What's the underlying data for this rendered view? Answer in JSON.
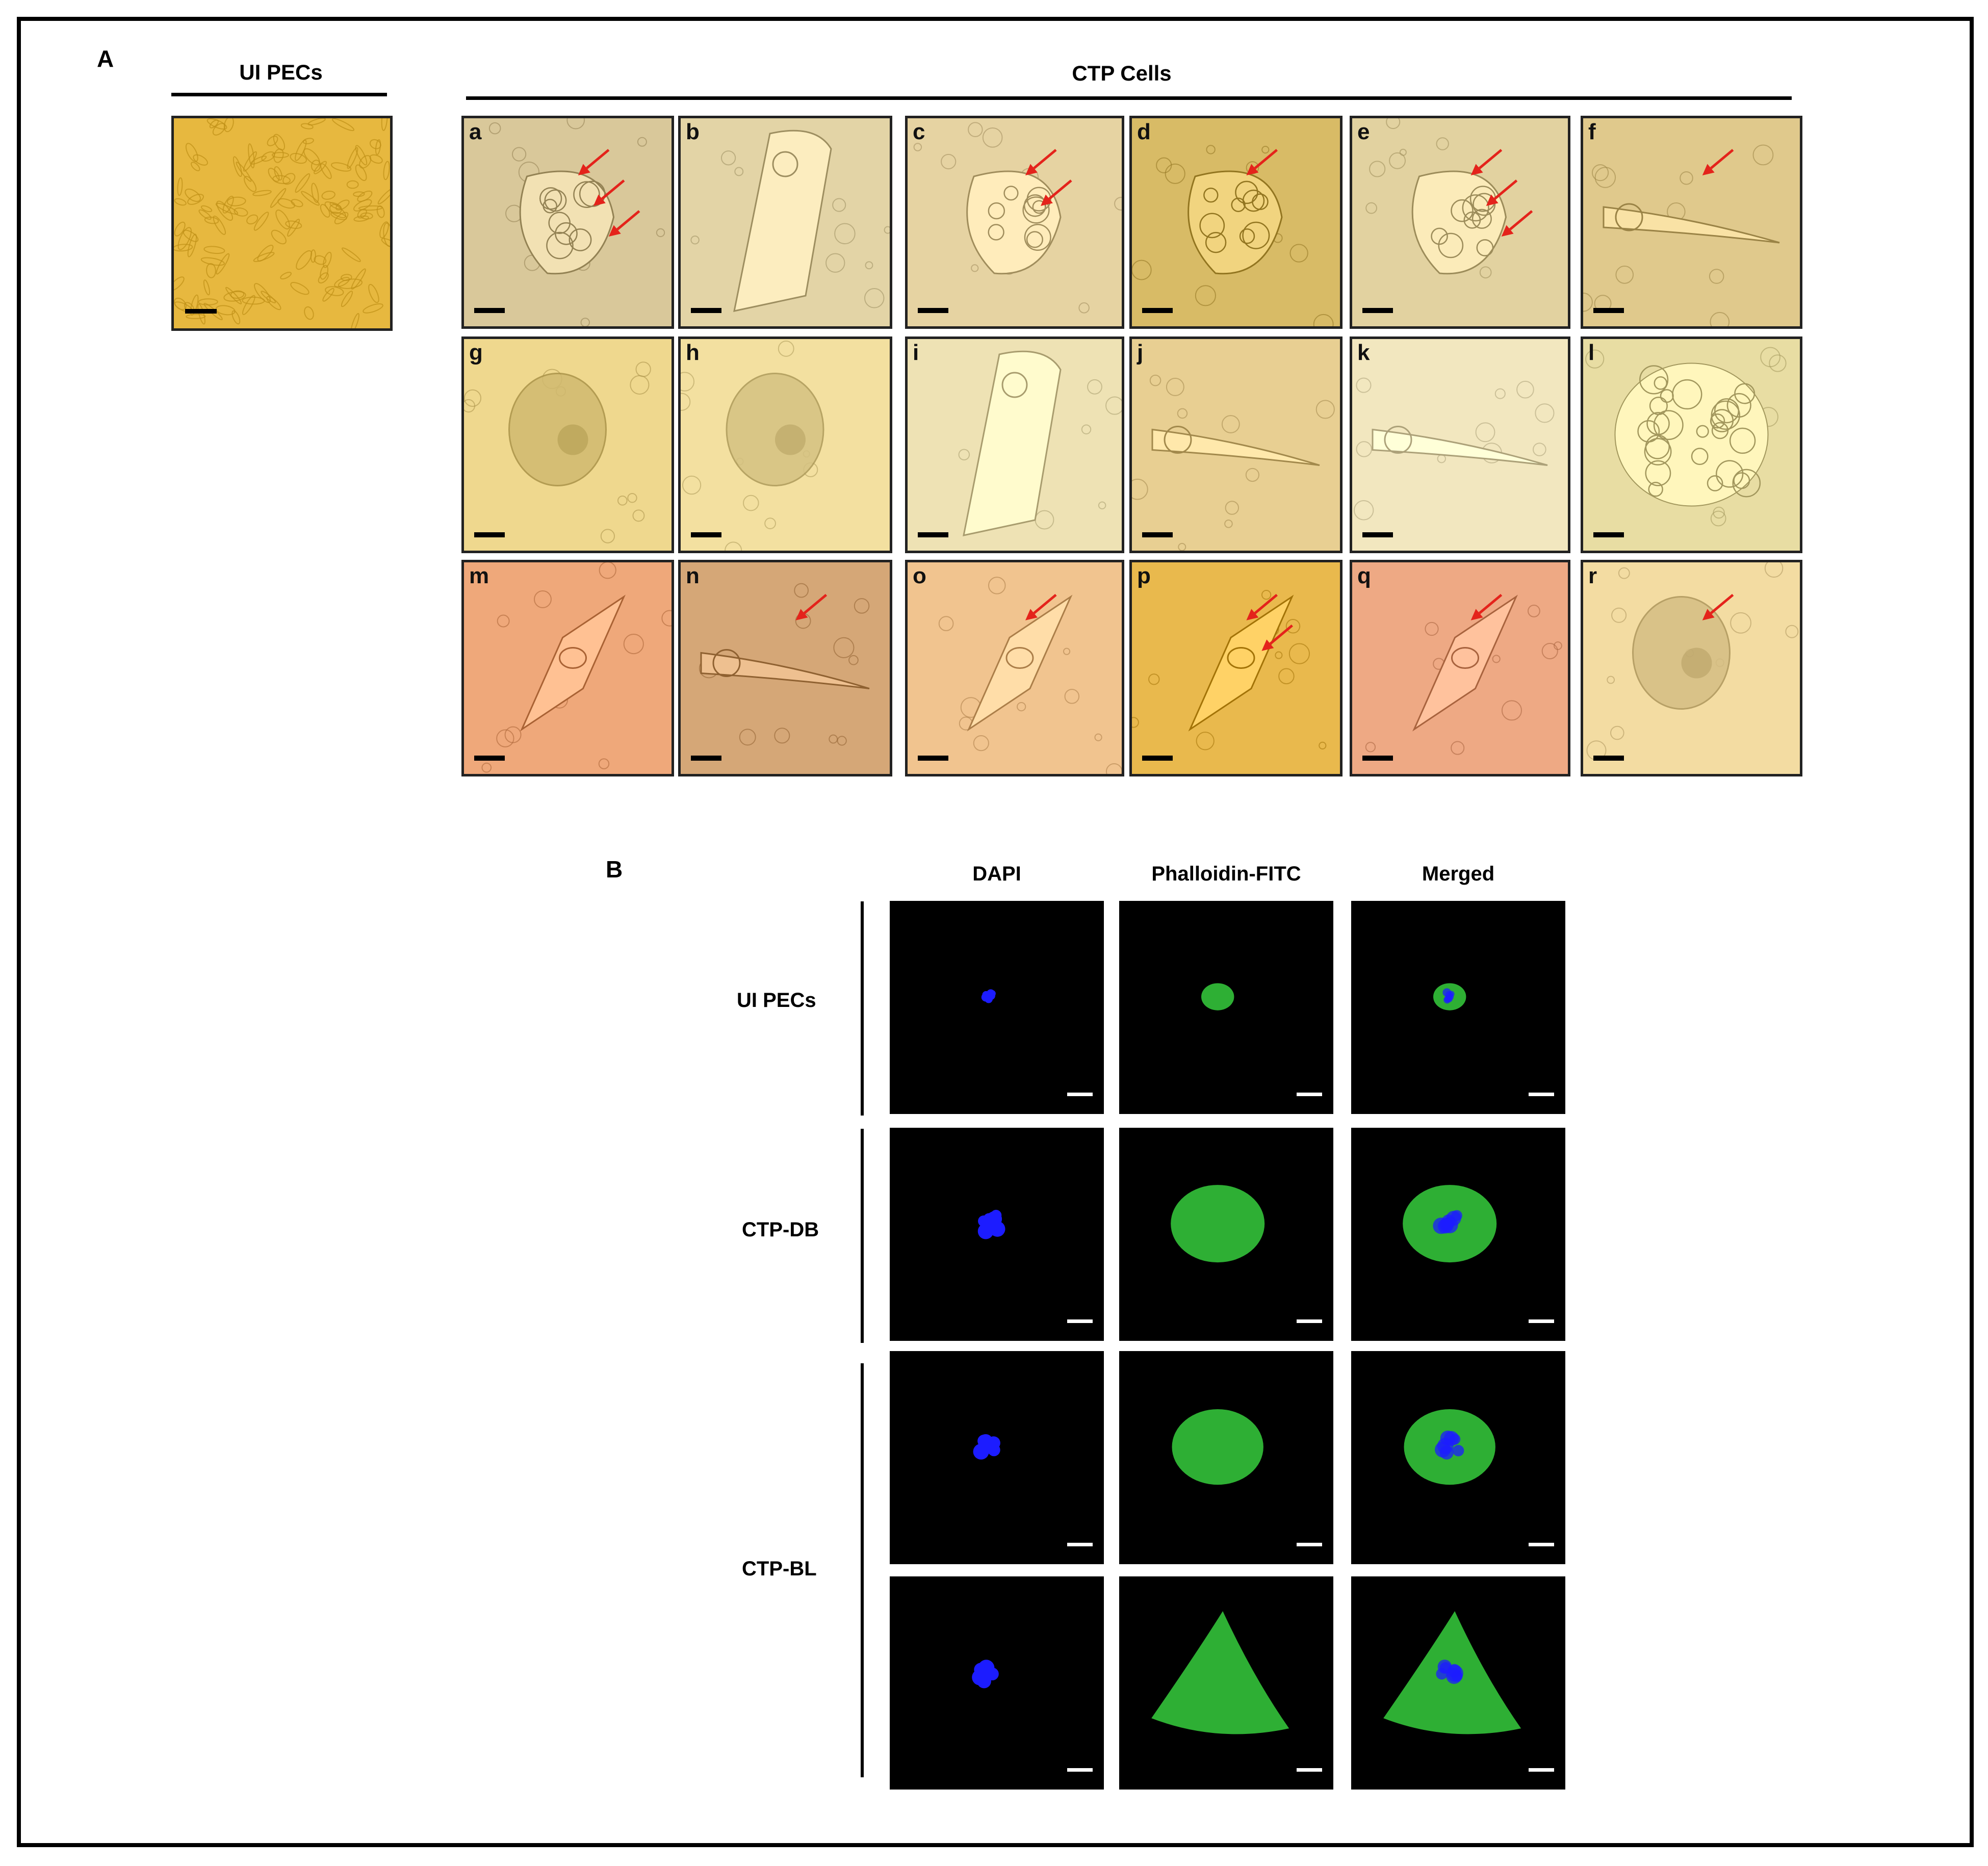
{
  "panel_a": {
    "label": "A",
    "control_title": "UI PECs",
    "group_title": "CTP Cells",
    "control_tile": {
      "letter": "",
      "bg": "#e7b83f",
      "stain": "dense-monolayer",
      "scale_bar_color": "#000000"
    },
    "tiles": [
      {
        "letter": "a",
        "bg": "#d9c89a",
        "shape": "cluster",
        "arrows": 3
      },
      {
        "letter": "b",
        "bg": "#e3d4a6",
        "shape": "giant",
        "arrows": 0
      },
      {
        "letter": "c",
        "bg": "#e6d3a2",
        "shape": "cluster",
        "arrows": 2
      },
      {
        "letter": "d",
        "bg": "#d8bb66",
        "shape": "cluster",
        "arrows": 1
      },
      {
        "letter": "e",
        "bg": "#e2d2a0",
        "shape": "cluster",
        "arrows": 3
      },
      {
        "letter": "f",
        "bg": "#e0c98c",
        "shape": "elongated",
        "arrows": 1
      },
      {
        "letter": "g",
        "bg": "#efd88e",
        "shape": "round",
        "arrows": 0
      },
      {
        "letter": "h",
        "bg": "#f3e0a0",
        "shape": "round",
        "arrows": 0
      },
      {
        "letter": "i",
        "bg": "#eee2b4",
        "shape": "giant",
        "arrows": 0
      },
      {
        "letter": "j",
        "bg": "#e8cf92",
        "shape": "elongated",
        "arrows": 0
      },
      {
        "letter": "k",
        "bg": "#f2e7bf",
        "shape": "elongated",
        "arrows": 0
      },
      {
        "letter": "l",
        "bg": "#e8dda3",
        "shape": "vacuolated",
        "arrows": 0
      },
      {
        "letter": "m",
        "bg": "#efa87a",
        "shape": "spindle",
        "arrows": 0
      },
      {
        "letter": "n",
        "bg": "#d5a777",
        "shape": "elongated",
        "arrows": 1
      },
      {
        "letter": "o",
        "bg": "#f1c48f",
        "shape": "spindle",
        "arrows": 1
      },
      {
        "letter": "p",
        "bg": "#e9b94d",
        "shape": "spindle",
        "arrows": 2
      },
      {
        "letter": "q",
        "bg": "#eea984",
        "shape": "spindle",
        "arrows": 1
      },
      {
        "letter": "r",
        "bg": "#f3dca2",
        "shape": "round",
        "arrows": 1
      }
    ],
    "arrow_color": "#e4231b"
  },
  "panel_b": {
    "label": "B",
    "columns": [
      "DAPI",
      "Phalloidin-FITC",
      "Merged"
    ],
    "row_labels": [
      "UI PECs",
      "CTP-DB",
      "CTP-BL"
    ],
    "colors": {
      "dapi": "#1c1cff",
      "fitc": "#33c23a",
      "background": "#000000",
      "scale_bar": "#ffffff"
    },
    "rows": [
      {
        "group": "UI PECs",
        "size": "small"
      },
      {
        "group": "CTP-DB",
        "size": "large"
      },
      {
        "group": "CTP-BL",
        "size": "large-round"
      },
      {
        "group": "CTP-BL",
        "size": "irregular"
      }
    ]
  }
}
